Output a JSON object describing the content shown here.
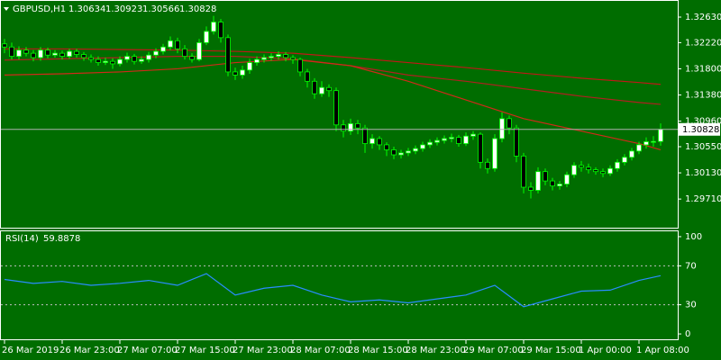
{
  "chart_data": [
    {
      "type": "candlestick",
      "symbol": "GBPUSD,H1",
      "up_color": "#ffffff",
      "down_color": "#000000",
      "wick_color": "#00ff00",
      "last_line_color": "#b0b0b0",
      "categories": [
        "26 Mar 2019",
        null,
        null,
        null,
        null,
        null,
        null,
        null,
        "26 Mar 23:00",
        null,
        null,
        null,
        null,
        null,
        null,
        null,
        "27 Mar 07:00",
        null,
        null,
        null,
        null,
        null,
        null,
        null,
        "27 Mar 15:00",
        null,
        null,
        null,
        null,
        null,
        null,
        null,
        "27 Mar 23:00",
        null,
        null,
        null,
        null,
        null,
        null,
        null,
        "28 Mar 07:00",
        null,
        null,
        null,
        null,
        null,
        null,
        null,
        "28 Mar 15:00",
        null,
        null,
        null,
        null,
        null,
        null,
        null,
        "28 Mar 23:00",
        null,
        null,
        null,
        null,
        null,
        null,
        null,
        "29 Mar 07:00",
        null,
        null,
        null,
        null,
        null,
        null,
        null,
        "29 Mar 15:00",
        null,
        null,
        null,
        null,
        null,
        null,
        null,
        "1 Apr 00:00",
        null,
        null,
        null,
        null,
        null,
        null,
        null,
        "1 Apr 08:00",
        null,
        null,
        null
      ],
      "open": [
        1.322,
        1.3215,
        1.32,
        1.321,
        1.3205,
        1.3198,
        1.321,
        1.3202,
        1.3205,
        1.32,
        1.3208,
        1.3203,
        1.3198,
        1.3195,
        1.319,
        1.3192,
        1.3188,
        1.3195,
        1.32,
        1.3192,
        1.3195,
        1.3202,
        1.3208,
        1.3215,
        1.3225,
        1.3212,
        1.32,
        1.3195,
        1.3222,
        1.324,
        1.3255,
        1.323,
        1.3175,
        1.317,
        1.3178,
        1.319,
        1.3195,
        1.3198,
        1.32,
        1.3203,
        1.3198,
        1.3195,
        1.3175,
        1.316,
        1.314,
        1.315,
        1.3145,
        1.309,
        1.308,
        1.3092,
        1.3085,
        1.306,
        1.3068,
        1.3058,
        1.305,
        1.3042,
        1.3045,
        1.3048,
        1.3052,
        1.3058,
        1.3062,
        1.3065,
        1.3068,
        1.307,
        1.306,
        1.3072,
        1.3075,
        1.303,
        1.302,
        1.3068,
        1.31,
        1.3085,
        1.304,
        1.299,
        1.2985,
        1.3015,
        1.3,
        1.2992,
        1.2995,
        1.301,
        1.3025,
        1.3022,
        1.3018,
        1.3015,
        1.3012,
        1.302,
        1.303,
        1.3038,
        1.3048,
        1.3058,
        1.3063,
        1.30634
      ],
      "high": [
        1.3228,
        1.3222,
        1.3216,
        1.3215,
        1.321,
        1.3215,
        1.3214,
        1.321,
        1.3209,
        1.3212,
        1.3212,
        1.3207,
        1.3203,
        1.32,
        1.3198,
        1.3197,
        1.32,
        1.3206,
        1.3204,
        1.32,
        1.3207,
        1.3213,
        1.322,
        1.3232,
        1.323,
        1.3218,
        1.3205,
        1.3228,
        1.3248,
        1.3265,
        1.326,
        1.3235,
        1.3182,
        1.3185,
        1.3196,
        1.32,
        1.3203,
        1.3205,
        1.3208,
        1.3207,
        1.3202,
        1.3198,
        1.318,
        1.3165,
        1.316,
        1.3155,
        1.315,
        1.3098,
        1.31,
        1.3098,
        1.309,
        1.3075,
        1.3072,
        1.3062,
        1.3055,
        1.305,
        1.3053,
        1.3057,
        1.3063,
        1.3067,
        1.307,
        1.3073,
        1.3076,
        1.3074,
        1.3078,
        1.308,
        1.3078,
        1.3036,
        1.3075,
        1.311,
        1.3105,
        1.309,
        1.3045,
        1.2998,
        1.3022,
        1.302,
        1.3005,
        1.3,
        1.3015,
        1.303,
        1.3032,
        1.3028,
        1.3022,
        1.302,
        1.3025,
        1.3035,
        1.3043,
        1.3053,
        1.3063,
        1.307,
        1.3072,
        1.30923
      ],
      "low": [
        1.3205,
        1.3195,
        1.3195,
        1.32,
        1.3192,
        1.3193,
        1.3197,
        1.3198,
        1.3195,
        1.3196,
        1.3198,
        1.3193,
        1.319,
        1.3185,
        1.3186,
        1.318,
        1.3184,
        1.319,
        1.3187,
        1.3188,
        1.319,
        1.3197,
        1.3203,
        1.321,
        1.3205,
        1.3195,
        1.319,
        1.3192,
        1.3218,
        1.3235,
        1.3222,
        1.3168,
        1.3162,
        1.3164,
        1.3172,
        1.3185,
        1.319,
        1.3193,
        1.3195,
        1.3192,
        1.3188,
        1.3168,
        1.315,
        1.3132,
        1.3135,
        1.3135,
        1.308,
        1.307,
        1.3074,
        1.3075,
        1.3045,
        1.3052,
        1.305,
        1.304,
        1.3035,
        1.3036,
        1.304,
        1.3043,
        1.3047,
        1.3053,
        1.3057,
        1.306,
        1.3062,
        1.3055,
        1.3056,
        1.3066,
        1.302,
        1.3012,
        1.3015,
        1.3062,
        1.3075,
        1.303,
        1.298,
        1.2972,
        1.298,
        1.2993,
        1.2985,
        1.2986,
        1.299,
        1.3005,
        1.3015,
        1.3012,
        1.301,
        1.3006,
        1.3008,
        1.3015,
        1.3025,
        1.3033,
        1.3043,
        1.3052,
        1.3055,
        1.30566
      ],
      "close": [
        1.3215,
        1.32,
        1.321,
        1.3205,
        1.3198,
        1.321,
        1.3202,
        1.3205,
        1.32,
        1.3208,
        1.3203,
        1.3198,
        1.3195,
        1.319,
        1.3192,
        1.3188,
        1.3195,
        1.32,
        1.3192,
        1.3195,
        1.3202,
        1.3208,
        1.3215,
        1.3225,
        1.3212,
        1.32,
        1.3195,
        1.3222,
        1.324,
        1.3255,
        1.323,
        1.3175,
        1.317,
        1.3178,
        1.319,
        1.3195,
        1.3198,
        1.32,
        1.3203,
        1.3198,
        1.3195,
        1.3175,
        1.316,
        1.314,
        1.315,
        1.3145,
        1.309,
        1.308,
        1.3092,
        1.3085,
        1.306,
        1.3068,
        1.3058,
        1.305,
        1.3042,
        1.3045,
        1.3048,
        1.3052,
        1.3058,
        1.3062,
        1.3065,
        1.3068,
        1.307,
        1.306,
        1.3072,
        1.3075,
        1.303,
        1.302,
        1.3068,
        1.31,
        1.3085,
        1.304,
        1.299,
        1.2985,
        1.3015,
        1.3,
        1.2992,
        1.2995,
        1.301,
        1.3025,
        1.3022,
        1.3018,
        1.3015,
        1.3012,
        1.302,
        1.303,
        1.3038,
        1.3048,
        1.3058,
        1.3063,
        1.30634,
        1.30828
      ],
      "lines": [
        {
          "color": "#c01818",
          "x": [
            0,
            8,
            16,
            24,
            32,
            40,
            48,
            56,
            64,
            72,
            80,
            88,
            91
          ],
          "values": [
            1.3212,
            1.3212,
            1.3211,
            1.321,
            1.3208,
            1.3205,
            1.3198,
            1.319,
            1.3182,
            1.3173,
            1.3165,
            1.3158,
            1.3155
          ]
        },
        {
          "color": "#b02020",
          "x": [
            0,
            8,
            16,
            24,
            32,
            40,
            48,
            56,
            64,
            72,
            80,
            88,
            91
          ],
          "values": [
            1.3194,
            1.3196,
            1.3198,
            1.32,
            1.32,
            1.3196,
            1.3185,
            1.317,
            1.316,
            1.3148,
            1.3136,
            1.3126,
            1.3123
          ]
        },
        {
          "color": "#d02a1a",
          "x": [
            0,
            8,
            16,
            24,
            32,
            40,
            48,
            56,
            64,
            72,
            80,
            88,
            91
          ],
          "values": [
            1.317,
            1.3172,
            1.3175,
            1.318,
            1.319,
            1.3195,
            1.3185,
            1.316,
            1.313,
            1.31,
            1.308,
            1.306,
            1.305
          ]
        }
      ],
      "ylim": [
        1.2925,
        1.3289
      ],
      "yticks": [
        {
          "value": 1.3263,
          "label": "1.32630"
        },
        {
          "value": 1.3222,
          "label": "1.32220"
        },
        {
          "value": 1.318,
          "label": "1.31800"
        },
        {
          "value": 1.3138,
          "label": "1.31380"
        },
        {
          "value": 1.3096,
          "label": "1.30960"
        },
        {
          "value": 1.3055,
          "label": "1.30550"
        },
        {
          "value": 1.3013,
          "label": "1.30130"
        },
        {
          "value": 1.2971,
          "label": "1.29710"
        }
      ]
    },
    {
      "type": "line",
      "title": "RSI(14)",
      "color": "#2a8cff",
      "x": [
        0,
        4,
        8,
        12,
        16,
        20,
        24,
        28,
        32,
        36,
        40,
        44,
        48,
        52,
        56,
        60,
        64,
        68,
        72,
        76,
        80,
        84,
        88,
        91
      ],
      "values": [
        56,
        52,
        54,
        50,
        52,
        55,
        50,
        62,
        40,
        47,
        50,
        40,
        33,
        35,
        32,
        36,
        40,
        50,
        28,
        36,
        44,
        45,
        55,
        59.8878
      ],
      "ylim": [
        -5.5,
        105.5
      ],
      "yticks": [
        100,
        70,
        30,
        0
      ]
    }
  ]
}
